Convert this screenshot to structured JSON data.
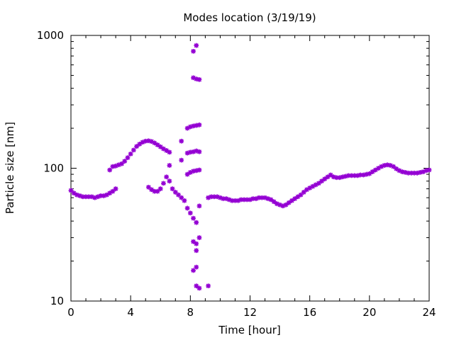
{
  "chart_data": {
    "type": "scatter",
    "title": "Modes location (3/19/19)",
    "xlabel": "Time [hour]",
    "ylabel": "Particle size [nm]",
    "xlim": [
      0,
      24
    ],
    "ylim": [
      10,
      1000
    ],
    "yscale": "log",
    "grid": false,
    "legend": "none",
    "marker": "asterisk",
    "x_ticks": [
      0,
      4,
      8,
      12,
      16,
      20,
      24
    ],
    "x_tick_labels": [
      "0",
      "4",
      "8",
      "12",
      "16",
      "20",
      "24"
    ],
    "y_ticks": [
      10,
      100,
      1000
    ],
    "y_tick_labels": [
      "10",
      "100",
      "1000"
    ],
    "colors": {
      "series": "#9400D3",
      "axis": "#000000"
    },
    "series": [
      {
        "values_desc": "mode positions",
        "points": [
          [
            0.0,
            68
          ],
          [
            0.2,
            65
          ],
          [
            0.4,
            63
          ],
          [
            0.6,
            62
          ],
          [
            0.8,
            61
          ],
          [
            1.0,
            61
          ],
          [
            1.2,
            61
          ],
          [
            1.4,
            61
          ],
          [
            1.6,
            60
          ],
          [
            1.8,
            61
          ],
          [
            2.0,
            62
          ],
          [
            2.2,
            62
          ],
          [
            2.4,
            63
          ],
          [
            2.6,
            65
          ],
          [
            2.8,
            67
          ],
          [
            3.0,
            70
          ],
          [
            2.6,
            97
          ],
          [
            2.8,
            103
          ],
          [
            3.0,
            104
          ],
          [
            3.2,
            106
          ],
          [
            3.4,
            108
          ],
          [
            3.6,
            113
          ],
          [
            3.8,
            120
          ],
          [
            4.0,
            128
          ],
          [
            4.2,
            137
          ],
          [
            4.4,
            146
          ],
          [
            4.6,
            152
          ],
          [
            4.8,
            157
          ],
          [
            5.0,
            160
          ],
          [
            5.2,
            161
          ],
          [
            5.4,
            159
          ],
          [
            5.6,
            155
          ],
          [
            5.8,
            150
          ],
          [
            6.0,
            145
          ],
          [
            6.2,
            140
          ],
          [
            6.4,
            136
          ],
          [
            6.6,
            132
          ],
          [
            5.2,
            72
          ],
          [
            5.4,
            69
          ],
          [
            5.6,
            67
          ],
          [
            5.8,
            67
          ],
          [
            6.0,
            70
          ],
          [
            6.2,
            77
          ],
          [
            6.4,
            86
          ],
          [
            6.6,
            80
          ],
          [
            6.8,
            70
          ],
          [
            7.0,
            66
          ],
          [
            7.2,
            63
          ],
          [
            7.4,
            60
          ],
          [
            7.6,
            57
          ],
          [
            7.8,
            50
          ],
          [
            8.0,
            46
          ],
          [
            8.2,
            42
          ],
          [
            8.4,
            39
          ],
          [
            6.6,
            105
          ],
          [
            7.4,
            115
          ],
          [
            7.4,
            160
          ],
          [
            7.8,
            90
          ],
          [
            8.0,
            93
          ],
          [
            8.2,
            95
          ],
          [
            8.4,
            96
          ],
          [
            8.6,
            97
          ],
          [
            7.8,
            130
          ],
          [
            8.0,
            132
          ],
          [
            8.2,
            133
          ],
          [
            8.4,
            135
          ],
          [
            8.6,
            133
          ],
          [
            7.8,
            200
          ],
          [
            8.0,
            205
          ],
          [
            8.2,
            208
          ],
          [
            8.4,
            210
          ],
          [
            8.6,
            212
          ],
          [
            8.2,
            480
          ],
          [
            8.4,
            470
          ],
          [
            8.6,
            465
          ],
          [
            8.2,
            760
          ],
          [
            8.4,
            840
          ],
          [
            8.2,
            17
          ],
          [
            8.4,
            18
          ],
          [
            8.2,
            28
          ],
          [
            8.4,
            27
          ],
          [
            8.4,
            24
          ],
          [
            8.6,
            30
          ],
          [
            8.6,
            52
          ],
          [
            8.4,
            13
          ],
          [
            8.6,
            12.5
          ],
          [
            9.2,
            13
          ],
          [
            9.2,
            60
          ],
          [
            9.4,
            61
          ],
          [
            9.6,
            61
          ],
          [
            9.8,
            61
          ],
          [
            10.0,
            60
          ],
          [
            10.2,
            59
          ],
          [
            10.4,
            59
          ],
          [
            10.6,
            58
          ],
          [
            10.8,
            57
          ],
          [
            11.0,
            57
          ],
          [
            11.2,
            57
          ],
          [
            11.4,
            58
          ],
          [
            11.6,
            58
          ],
          [
            11.8,
            58
          ],
          [
            12.0,
            58
          ],
          [
            12.2,
            59
          ],
          [
            12.4,
            59
          ],
          [
            12.6,
            60
          ],
          [
            12.8,
            60
          ],
          [
            13.0,
            60
          ],
          [
            13.2,
            59
          ],
          [
            13.4,
            58
          ],
          [
            13.6,
            56
          ],
          [
            13.8,
            54
          ],
          [
            14.0,
            53
          ],
          [
            14.2,
            52
          ],
          [
            14.4,
            53
          ],
          [
            14.6,
            55
          ],
          [
            14.8,
            57
          ],
          [
            15.0,
            59
          ],
          [
            15.2,
            61
          ],
          [
            15.4,
            63
          ],
          [
            15.6,
            66
          ],
          [
            15.8,
            69
          ],
          [
            16.0,
            71
          ],
          [
            16.2,
            73
          ],
          [
            16.4,
            75
          ],
          [
            16.6,
            77
          ],
          [
            16.8,
            80
          ],
          [
            17.0,
            83
          ],
          [
            17.2,
            86
          ],
          [
            17.4,
            89
          ],
          [
            17.6,
            86
          ],
          [
            17.8,
            85
          ],
          [
            18.0,
            85
          ],
          [
            18.2,
            86
          ],
          [
            18.4,
            87
          ],
          [
            18.6,
            88
          ],
          [
            18.8,
            88
          ],
          [
            19.0,
            88
          ],
          [
            19.2,
            88
          ],
          [
            19.4,
            89
          ],
          [
            19.6,
            89
          ],
          [
            19.8,
            90
          ],
          [
            20.0,
            91
          ],
          [
            20.2,
            94
          ],
          [
            20.4,
            97
          ],
          [
            20.6,
            100
          ],
          [
            20.8,
            103
          ],
          [
            21.0,
            105
          ],
          [
            21.2,
            106
          ],
          [
            21.4,
            105
          ],
          [
            21.6,
            103
          ],
          [
            21.8,
            99
          ],
          [
            22.0,
            96
          ],
          [
            22.2,
            94
          ],
          [
            22.4,
            93
          ],
          [
            22.6,
            92
          ],
          [
            22.8,
            92
          ],
          [
            23.0,
            92
          ],
          [
            23.2,
            92
          ],
          [
            23.4,
            93
          ],
          [
            23.6,
            94
          ],
          [
            23.8,
            96
          ],
          [
            24.0,
            97
          ]
        ]
      }
    ]
  }
}
